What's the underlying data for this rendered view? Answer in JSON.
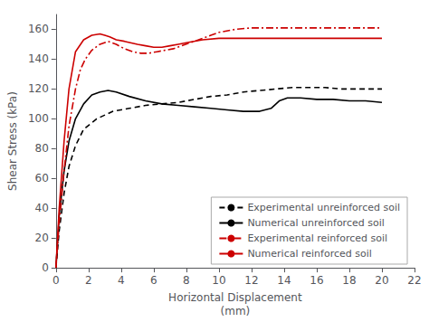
{
  "chart_data": {
    "type": "line",
    "xlabel": "Horizontal Displacement\n(mm)",
    "ylabel": "Shear Stress (kPa)",
    "xlim": [
      0,
      22
    ],
    "ylim": [
      0,
      170
    ],
    "xticks": [
      0,
      2,
      4,
      6,
      8,
      10,
      12,
      14,
      16,
      18,
      20,
      22
    ],
    "yticks": [
      0,
      20,
      40,
      60,
      80,
      100,
      120,
      140,
      160
    ],
    "grid": false,
    "legend": "lower right",
    "series": [
      {
        "name": "Experimental unreinforced soil",
        "color": "#000000",
        "line_style": "dashed",
        "x": [
          0,
          0.2,
          0.5,
          0.8,
          1.2,
          1.7,
          2.5,
          3.5,
          4.5,
          5.5,
          6.5,
          7.5,
          8.5,
          9.5,
          10.5,
          11.5,
          12.5,
          13.5,
          14.5,
          15.5,
          16.5,
          17.5,
          18.5,
          19.5,
          20.0
        ],
        "values": [
          0,
          25,
          50,
          68,
          82,
          93,
          100,
          105,
          107,
          109,
          110,
          111,
          113,
          115,
          116,
          118,
          119,
          120,
          121,
          121,
          121,
          120,
          120,
          120,
          120
        ]
      },
      {
        "name": "Numerical unreinforced soil",
        "color": "#000000",
        "line_style": "solid",
        "x": [
          0,
          0.2,
          0.5,
          0.8,
          1.2,
          1.7,
          2.2,
          2.7,
          3.2,
          3.7,
          4.5,
          5.5,
          6.5,
          7.5,
          8.5,
          9.5,
          10.5,
          11.5,
          12.5,
          13.2,
          13.7,
          14.2,
          15.0,
          16.0,
          17.0,
          18.0,
          19.0,
          20.0
        ],
        "values": [
          0,
          35,
          65,
          85,
          100,
          110,
          116,
          118,
          119,
          118,
          115,
          112,
          110,
          109,
          108,
          107,
          106,
          105,
          105,
          107,
          112,
          114,
          114,
          113,
          113,
          112,
          112,
          111
        ]
      },
      {
        "name": "Experimental reinforced soil",
        "color": "#cc0000",
        "line_style": "dashdot",
        "x": [
          0,
          0.2,
          0.5,
          0.8,
          1.2,
          1.5,
          1.8,
          2.2,
          2.7,
          3.2,
          3.7,
          4.2,
          4.7,
          5.2,
          5.7,
          6.2,
          6.7,
          7.2,
          7.7,
          8.5,
          9.5,
          10.0,
          11.0,
          12.0,
          13.0,
          14.0,
          15.0,
          16.0,
          17.0,
          18.0,
          19.0,
          20.0
        ],
        "values": [
          0,
          30,
          65,
          95,
          120,
          133,
          140,
          146,
          150,
          152,
          150,
          147,
          145,
          144,
          144,
          145,
          146,
          147,
          149,
          152,
          156,
          158,
          160,
          161,
          161,
          161,
          161,
          161,
          161,
          161,
          161,
          161
        ]
      },
      {
        "name": "Numerical reinforced soil",
        "color": "#cc0000",
        "line_style": "solid",
        "x": [
          0,
          0.2,
          0.5,
          0.8,
          1.2,
          1.7,
          2.2,
          2.7,
          3.0,
          3.3,
          3.7,
          4.2,
          5.0,
          5.5,
          6.0,
          6.5,
          7.0,
          7.5,
          8.0,
          9.0,
          10.0,
          11.0,
          12.0,
          13.0,
          14.0,
          15.0,
          16.0,
          17.0,
          18.0,
          19.0,
          20.0
        ],
        "values": [
          0,
          40,
          85,
          120,
          145,
          153,
          156,
          157,
          156,
          155,
          153,
          152,
          150,
          149,
          148,
          148,
          149,
          150,
          151,
          153,
          154,
          154,
          154,
          154,
          154,
          154,
          154,
          154,
          154,
          154,
          154
        ]
      }
    ]
  }
}
